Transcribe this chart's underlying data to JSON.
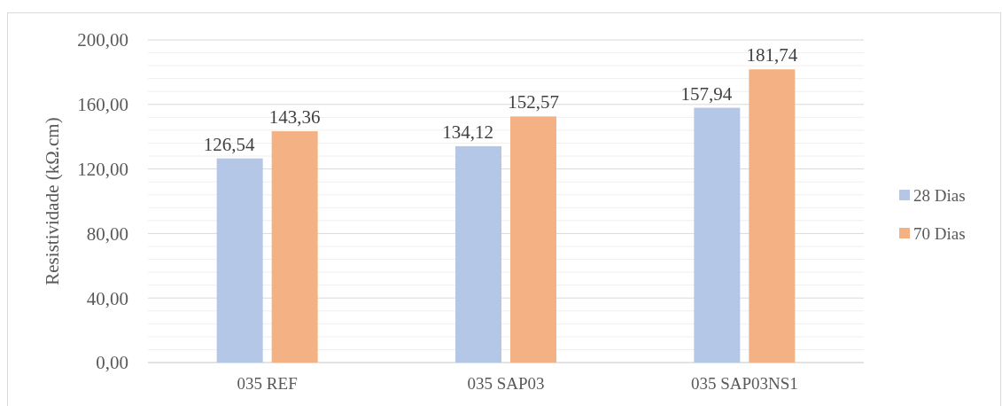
{
  "chart_data": {
    "type": "bar",
    "ylabel": "Resistividade (kΩ.cm)",
    "categories": [
      "035 REF",
      "035 SAP03",
      "035 SAP03NS1"
    ],
    "series": [
      {
        "name": "28 Dias",
        "color": "#b4c7e7",
        "values": [
          126.54,
          134.12,
          157.94
        ],
        "value_labels": [
          "126,54",
          "134,12",
          "157,94"
        ]
      },
      {
        "name": "70 Dias",
        "color": "#f4b183",
        "values": [
          143.36,
          152.57,
          181.74
        ],
        "value_labels": [
          "143,36",
          "152,57",
          "181,74"
        ]
      }
    ],
    "ylim": [
      0,
      200
    ],
    "yticks": [
      {
        "value": 0,
        "label": "0,00"
      },
      {
        "value": 8,
        "label": null
      },
      {
        "value": 16,
        "label": null
      },
      {
        "value": 24,
        "label": null
      },
      {
        "value": 32,
        "label": null
      },
      {
        "value": 40,
        "label": "40,00"
      },
      {
        "value": 48,
        "label": null
      },
      {
        "value": 56,
        "label": null
      },
      {
        "value": 64,
        "label": null
      },
      {
        "value": 72,
        "label": null
      },
      {
        "value": 80,
        "label": "80,00"
      },
      {
        "value": 88,
        "label": null
      },
      {
        "value": 96,
        "label": null
      },
      {
        "value": 104,
        "label": null
      },
      {
        "value": 112,
        "label": null
      },
      {
        "value": 120,
        "label": "120,00"
      },
      {
        "value": 128,
        "label": null
      },
      {
        "value": 136,
        "label": null
      },
      {
        "value": 144,
        "label": null
      },
      {
        "value": 152,
        "label": null
      },
      {
        "value": 160,
        "label": "160,00"
      },
      {
        "value": 168,
        "label": null
      },
      {
        "value": 176,
        "label": null
      },
      {
        "value": 184,
        "label": null
      },
      {
        "value": 192,
        "label": null
      },
      {
        "value": 200,
        "label": "200,00"
      }
    ],
    "grid": "y",
    "legend": "right"
  }
}
